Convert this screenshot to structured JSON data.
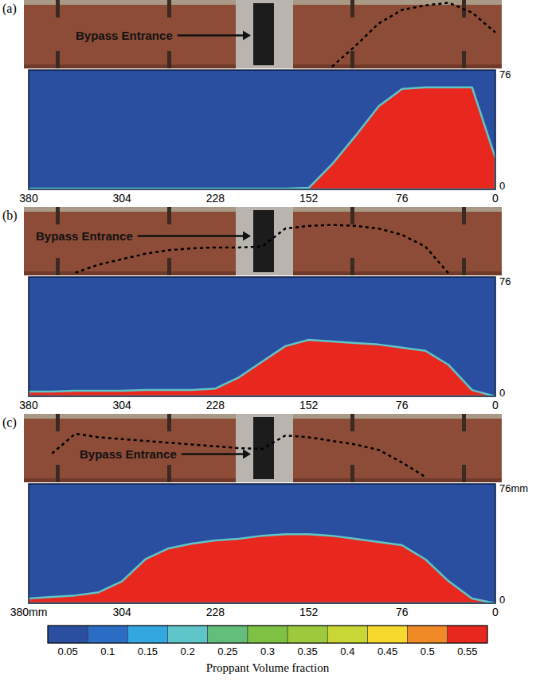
{
  "chart_data": [
    {
      "type": "area",
      "title": "(a)",
      "annotation": "Bypass Entrance",
      "x": [
        380,
        361,
        342,
        323,
        304,
        285,
        266,
        247,
        228,
        209,
        190,
        171,
        152,
        133,
        114,
        95,
        76,
        57,
        38,
        19,
        0
      ],
      "series": [
        {
          "type": "area",
          "color": "#e8281e",
          "values": [
            0.5,
            0.5,
            0.5,
            0.5,
            0.5,
            0.5,
            0.5,
            0.5,
            0.5,
            0.5,
            0.5,
            0.5,
            1,
            16,
            34,
            53,
            64,
            65,
            65,
            65,
            20
          ]
        },
        {
          "type": "line",
          "line_style": "dashed",
          "color": "#000000",
          "values": [
            null,
            null,
            null,
            null,
            null,
            null,
            null,
            null,
            null,
            null,
            null,
            null,
            null,
            2,
            25,
            50,
            65,
            70,
            73,
            62,
            40
          ]
        }
      ],
      "xlim": [
        380,
        0
      ],
      "xticks": [
        380,
        304,
        228,
        152,
        76,
        0
      ],
      "ylim": [
        0,
        76
      ],
      "yticks": [
        76,
        0
      ]
    },
    {
      "type": "area",
      "title": "(b)",
      "annotation": "Bypass Entrance",
      "x": [
        380,
        361,
        342,
        323,
        304,
        285,
        266,
        247,
        228,
        209,
        190,
        171,
        152,
        133,
        114,
        95,
        76,
        57,
        38,
        19,
        0
      ],
      "series": [
        {
          "type": "area",
          "color": "#e8281e",
          "values": [
            3,
            3,
            3.5,
            3.5,
            3.5,
            4,
            4,
            4,
            5,
            12,
            22,
            32,
            36,
            35,
            34,
            33,
            31,
            29,
            20,
            4,
            0
          ]
        },
        {
          "type": "line",
          "line_style": "dashed",
          "color": "#000000",
          "values": [
            null,
            null,
            3,
            12,
            18,
            24,
            28,
            30,
            31,
            31,
            32,
            52,
            55,
            56,
            55,
            52,
            45,
            32,
            2,
            null,
            null
          ]
        }
      ],
      "xlim": [
        380,
        0
      ],
      "xticks": [
        380,
        304,
        228,
        152,
        76,
        0
      ],
      "ylim": [
        0,
        76
      ],
      "yticks": [
        76,
        0
      ]
    },
    {
      "type": "area",
      "title": "(c)",
      "annotation": "Bypass Entrance",
      "x": [
        380,
        361,
        342,
        323,
        304,
        285,
        266,
        247,
        228,
        209,
        190,
        171,
        152,
        133,
        114,
        95,
        76,
        57,
        38,
        19,
        0
      ],
      "series": [
        {
          "type": "area",
          "color": "#e8281e",
          "values": [
            3,
            4,
            5,
            7,
            14,
            28,
            35,
            38,
            40,
            41,
            43,
            44,
            44,
            43,
            41,
            39,
            37,
            28,
            14,
            3,
            0
          ]
        },
        {
          "type": "line",
          "line_style": "dashed",
          "color": "#000000",
          "values": [
            null,
            32,
            54,
            50,
            48,
            46,
            44,
            42,
            40,
            38,
            37,
            52,
            50,
            46,
            42,
            36,
            22,
            6,
            null,
            null,
            null
          ]
        }
      ],
      "xlim": [
        380,
        0
      ],
      "xticks": [
        {
          "value": 380,
          "label": "380mm"
        },
        304,
        228,
        152,
        76,
        0
      ],
      "ylim": [
        0,
        76
      ],
      "yticks": [
        {
          "value": 76,
          "label": "76mm"
        },
        0
      ]
    },
    {
      "type": "colorbar",
      "title": "Proppant Volume fraction",
      "values": [
        0.05,
        0.1,
        0.15,
        0.2,
        0.25,
        0.3,
        0.35,
        0.4,
        0.45,
        0.5,
        0.55
      ],
      "colors": [
        "#2a4fa0",
        "#2b6cc4",
        "#33a7e0",
        "#5ec6c8",
        "#63be7b",
        "#7dc242",
        "#9cca3c",
        "#c8d733",
        "#f5d92d",
        "#f08a27",
        "#e8281e"
      ]
    }
  ]
}
